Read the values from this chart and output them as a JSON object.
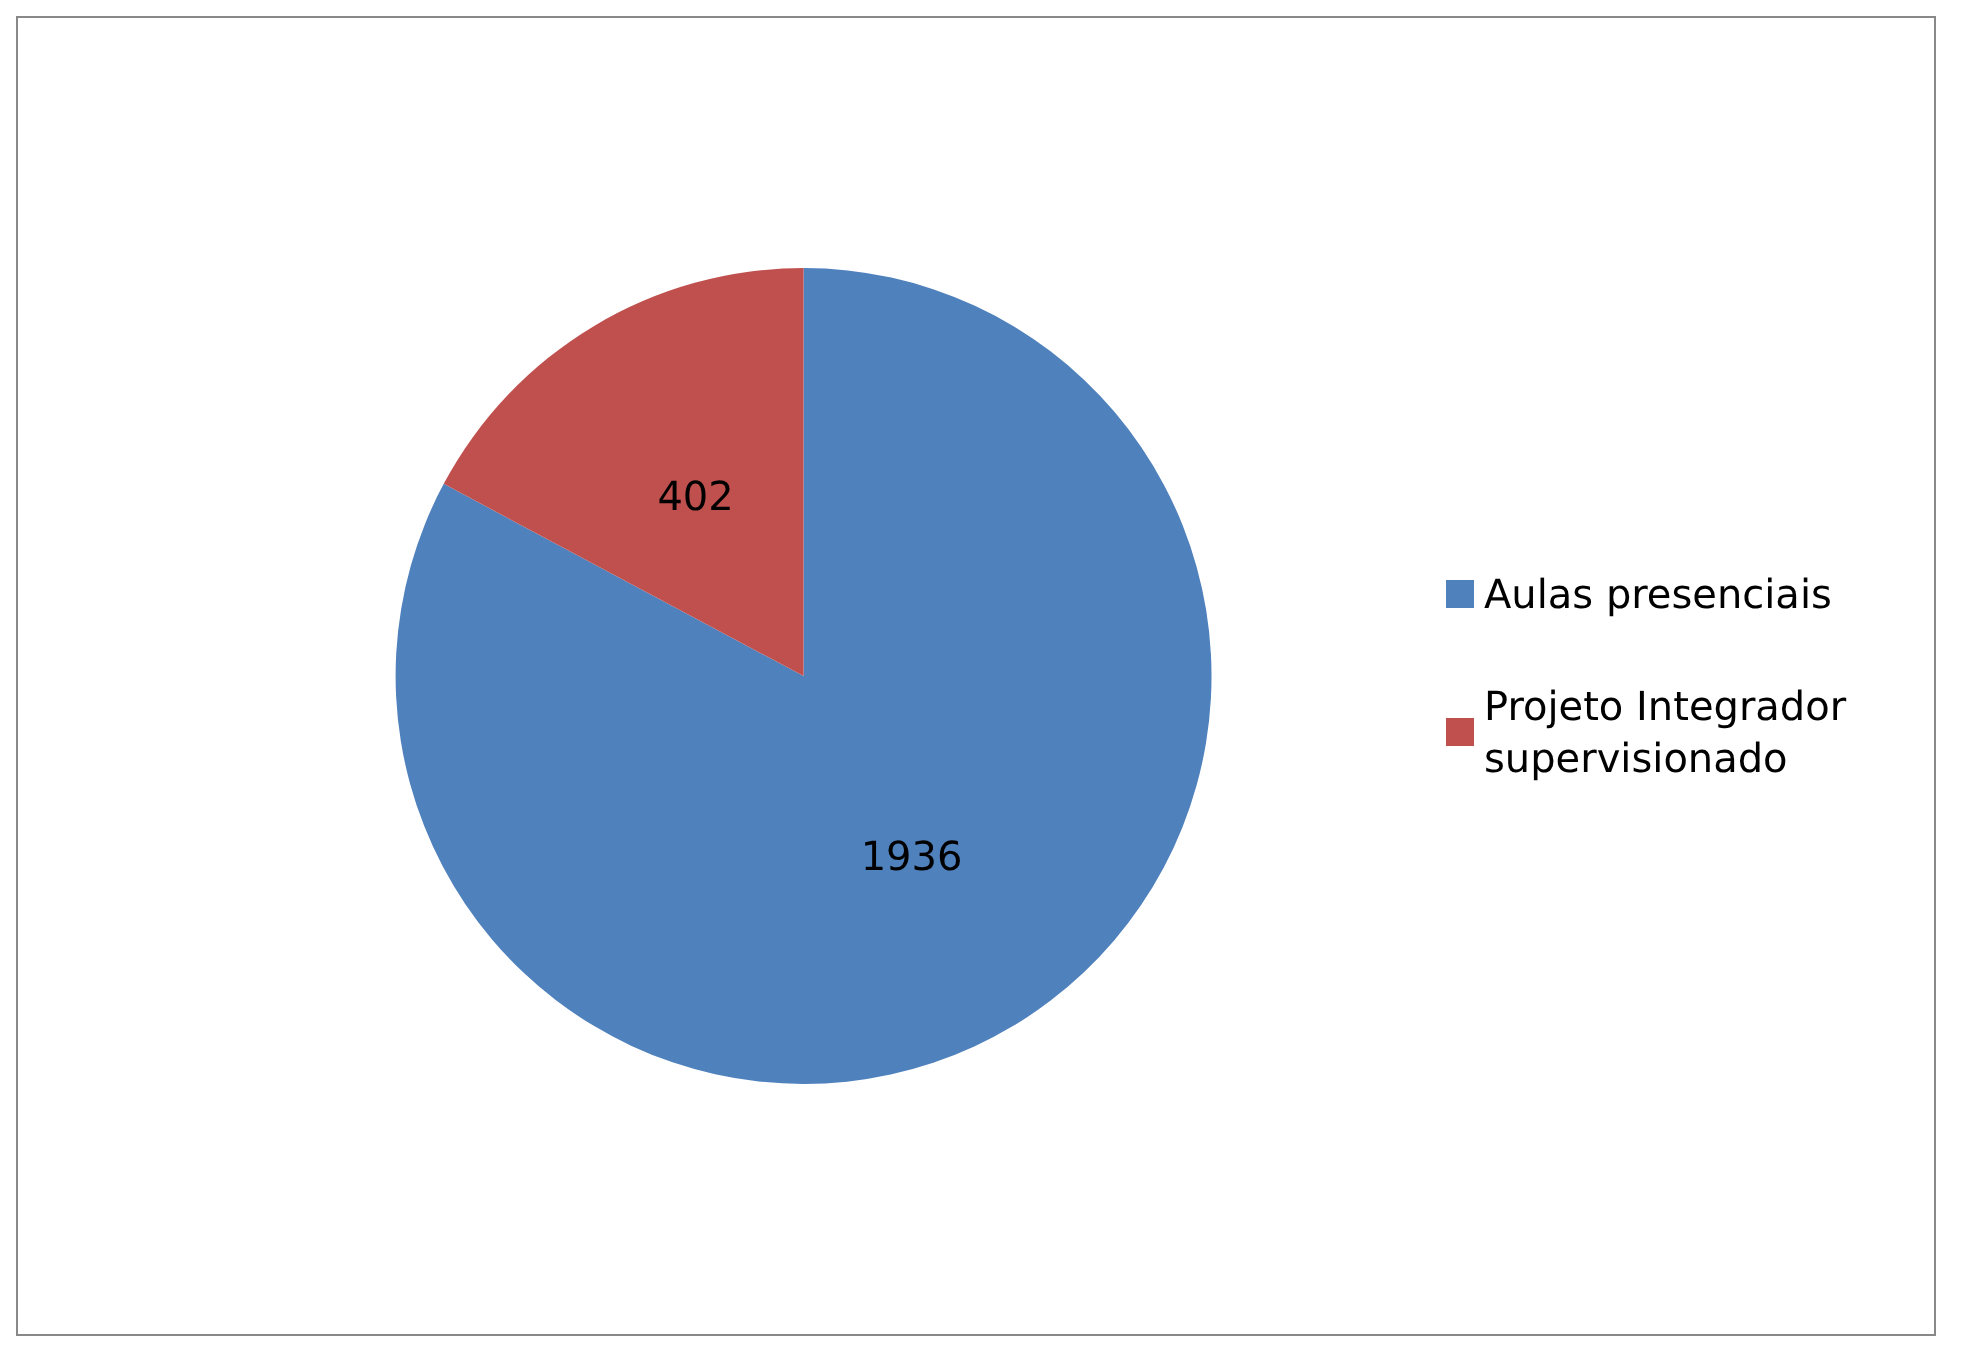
{
  "chart_data": {
    "type": "pie",
    "categories": [
      "Aulas presenciais",
      "Projeto Integrador supervisionado"
    ],
    "values": [
      1936,
      402
    ],
    "colors": [
      "#4f81bd",
      "#c0504d"
    ],
    "data_labels": true,
    "legend": "right"
  }
}
